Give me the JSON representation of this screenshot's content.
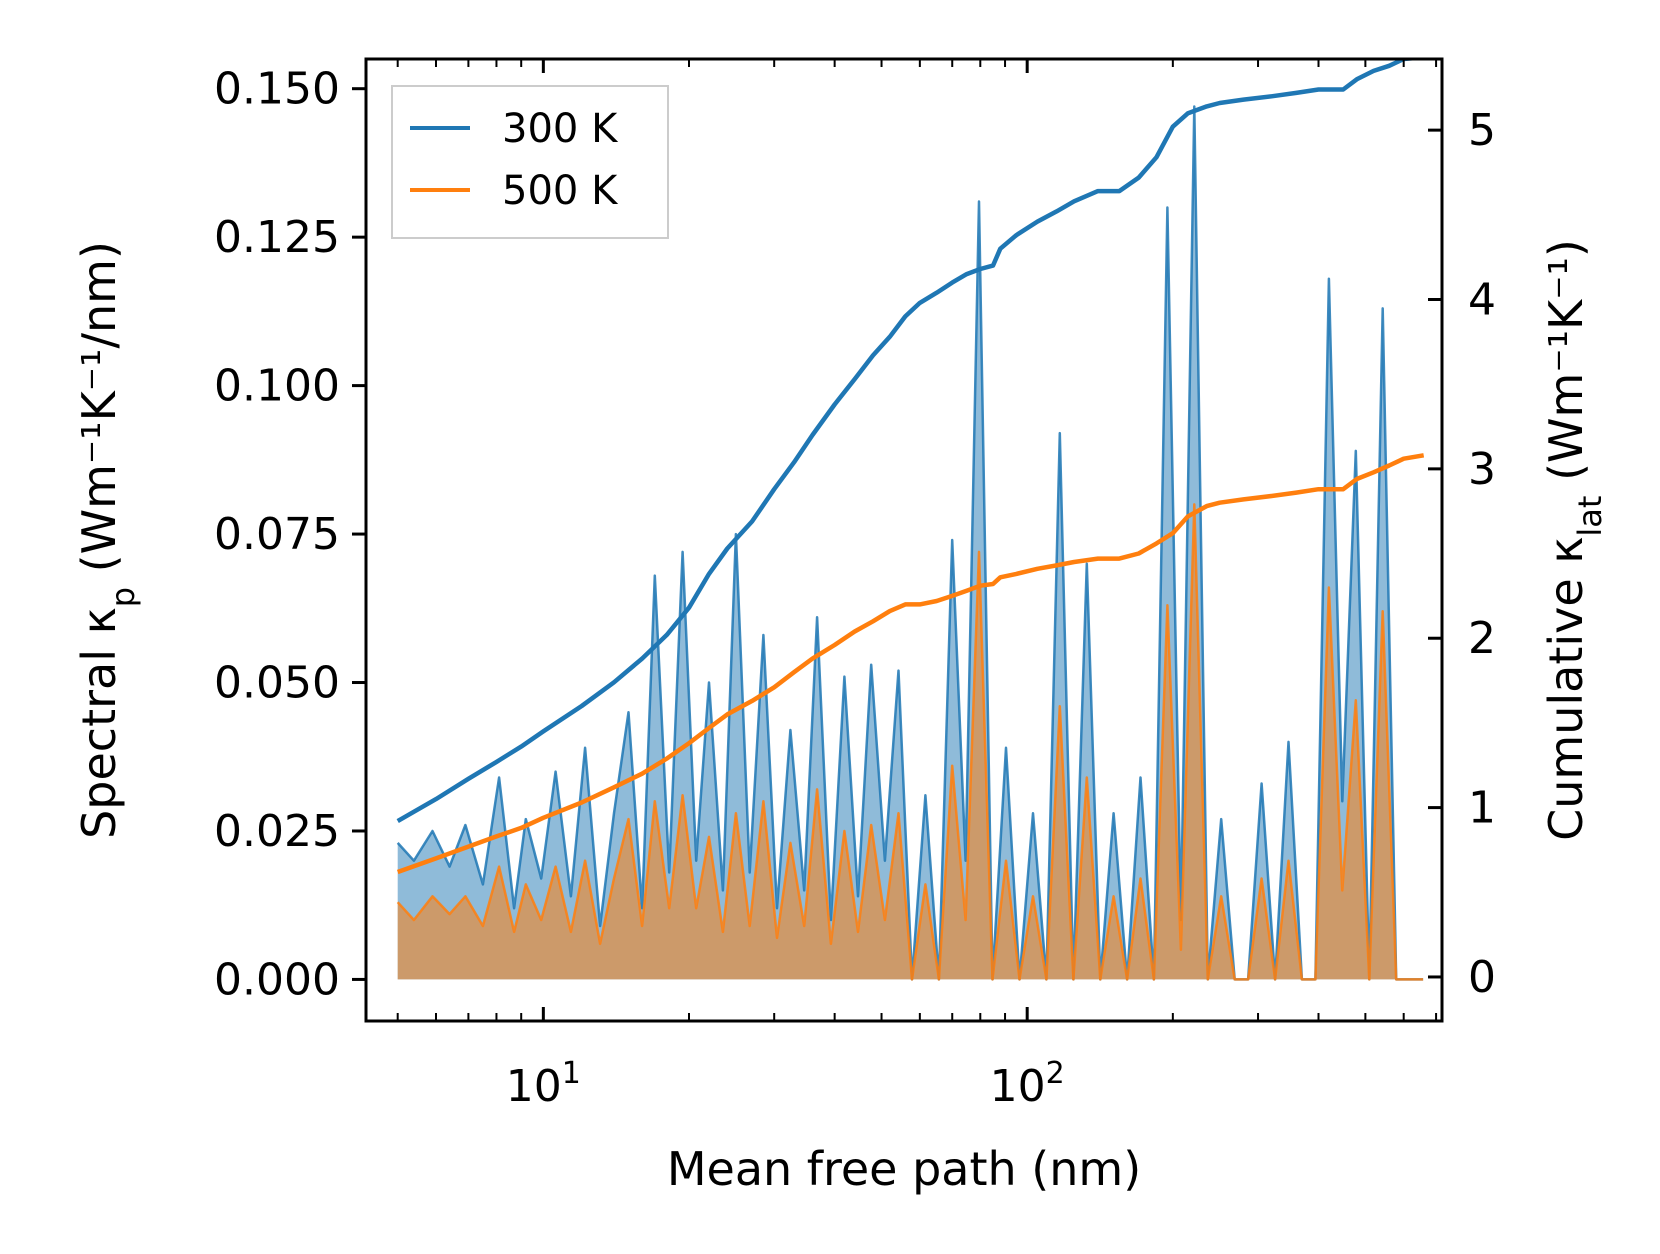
{
  "chart_data": {
    "type": "line",
    "x_scale": "log",
    "xlabel": "Mean free path (nm)",
    "ylabel_left": {
      "prefix": "Spectral κ",
      "sub": "p",
      "units": " (Wm⁻¹K⁻¹/nm)"
    },
    "ylabel_right": {
      "prefix": "Cumulative κ",
      "sub": "lat",
      "units": " (Wm⁻¹K⁻¹)"
    },
    "xlim": [
      4.3,
      720
    ],
    "ylim_left": [
      -0.007,
      0.155
    ],
    "ylim_right": [
      -0.26,
      5.42
    ],
    "x_ticks": [
      {
        "value": 10,
        "base": "10",
        "exp": "1"
      },
      {
        "value": 100,
        "base": "10",
        "exp": "2"
      }
    ],
    "y_ticks_left": [
      {
        "value": 0.0,
        "label": "0.000"
      },
      {
        "value": 0.025,
        "label": "0.025"
      },
      {
        "value": 0.05,
        "label": "0.050"
      },
      {
        "value": 0.075,
        "label": "0.075"
      },
      {
        "value": 0.1,
        "label": "0.100"
      },
      {
        "value": 0.125,
        "label": "0.125"
      },
      {
        "value": 0.15,
        "label": "0.150"
      }
    ],
    "y_ticks_right": [
      {
        "value": 0,
        "label": "0"
      },
      {
        "value": 1,
        "label": "1"
      },
      {
        "value": 2,
        "label": "2"
      },
      {
        "value": 3,
        "label": "3"
      },
      {
        "value": 4,
        "label": "4"
      },
      {
        "value": 5,
        "label": "5"
      }
    ],
    "legend": {
      "position": "upper-left",
      "entries": [
        "300 K",
        "500 K"
      ]
    },
    "series": [
      {
        "name": "300 K",
        "color": "#1f77b4",
        "fill_color": "#1f77b4",
        "spectral": {
          "x": [
            5,
            5.4,
            5.9,
            6.4,
            6.9,
            7.5,
            8.1,
            8.7,
            9.2,
            9.9,
            10.6,
            11.4,
            12.2,
            13.1,
            14,
            15,
            16,
            17,
            18.2,
            19.4,
            20.7,
            22,
            23.5,
            25,
            26.7,
            28.5,
            30.4,
            32.4,
            34.6,
            36.8,
            39.3,
            41.9,
            44.7,
            47.6,
            50.8,
            54.2,
            57.8,
            61.6,
            65.7,
            70,
            74.6,
            79.5,
            84.8,
            90.4,
            96.4,
            102.8,
            109.6,
            116.8,
            124.6,
            132.8,
            141.6,
            150.9,
            160.9,
            171.5,
            182.8,
            194.9,
            207.8,
            221.5,
            236.2,
            251.8,
            268.5,
            286.2,
            305.1,
            325.3,
            346.8,
            369.7,
            394.2,
            420.3,
            448.1,
            477.7,
            509.3,
            543,
            578.9,
            617.2,
            658
          ],
          "y": [
            0.023,
            0.02,
            0.025,
            0.019,
            0.026,
            0.016,
            0.034,
            0.012,
            0.027,
            0.017,
            0.035,
            0.014,
            0.039,
            0.009,
            0.028,
            0.045,
            0.012,
            0.068,
            0.018,
            0.072,
            0.02,
            0.05,
            0.015,
            0.075,
            0.018,
            0.058,
            0.012,
            0.042,
            0.015,
            0.061,
            0.01,
            0.051,
            0.014,
            0.053,
            0.02,
            0.052,
            0.0,
            0.031,
            0.0,
            0.074,
            0.02,
            0.131,
            0.0,
            0.039,
            0.0,
            0.028,
            0.0,
            0.092,
            0.0,
            0.07,
            0.0,
            0.028,
            0.0,
            0.034,
            0.0,
            0.13,
            0.01,
            0.147,
            0.0,
            0.027,
            0.0,
            0.0,
            0.033,
            0.0,
            0.04,
            0.0,
            0.0,
            0.118,
            0.03,
            0.089,
            0.0,
            0.113,
            0.0,
            0.0,
            0.0
          ]
        },
        "cumulative": {
          "x": [
            5,
            6,
            7,
            8,
            9,
            10,
            12,
            14,
            16,
            18,
            20,
            22,
            24,
            27,
            30,
            33,
            36,
            40,
            44,
            48,
            52,
            56,
            60,
            65,
            70,
            75,
            80,
            85,
            88,
            95,
            105,
            115,
            125,
            140,
            155,
            170,
            185,
            200,
            215,
            235,
            250,
            280,
            320,
            360,
            400,
            450,
            480,
            520,
            560,
            600,
            660
          ],
          "y": [
            0.92,
            1.05,
            1.17,
            1.27,
            1.36,
            1.45,
            1.6,
            1.74,
            1.88,
            2.02,
            2.18,
            2.38,
            2.53,
            2.69,
            2.88,
            3.04,
            3.2,
            3.38,
            3.53,
            3.67,
            3.78,
            3.9,
            3.98,
            4.04,
            4.1,
            4.15,
            4.18,
            4.2,
            4.3,
            4.38,
            4.46,
            4.52,
            4.58,
            4.64,
            4.64,
            4.72,
            4.84,
            5.02,
            5.1,
            5.14,
            5.16,
            5.18,
            5.2,
            5.22,
            5.24,
            5.24,
            5.3,
            5.35,
            5.38,
            5.42,
            5.43
          ]
        }
      },
      {
        "name": "500 K",
        "color": "#ff7f0e",
        "fill_color": "#ff7f0e",
        "spectral": {
          "x": [
            5,
            5.4,
            5.9,
            6.4,
            6.9,
            7.5,
            8.1,
            8.7,
            9.2,
            9.9,
            10.6,
            11.4,
            12.2,
            13.1,
            14,
            15,
            16,
            17,
            18.2,
            19.4,
            20.7,
            22,
            23.5,
            25,
            26.7,
            28.5,
            30.4,
            32.4,
            34.6,
            36.8,
            39.3,
            41.9,
            44.7,
            47.6,
            50.8,
            54.2,
            57.8,
            61.6,
            65.7,
            70,
            74.6,
            79.5,
            84.8,
            90.4,
            96.4,
            102.8,
            109.6,
            116.8,
            124.6,
            132.8,
            141.6,
            150.9,
            160.9,
            171.5,
            182.8,
            194.9,
            207.8,
            221.5,
            236.2,
            251.8,
            268.5,
            286.2,
            305.1,
            325.3,
            346.8,
            369.7,
            394.2,
            420.3,
            448.1,
            477.7,
            509.3,
            543,
            578.9,
            617.2,
            658
          ],
          "y": [
            0.013,
            0.01,
            0.014,
            0.011,
            0.014,
            0.009,
            0.019,
            0.008,
            0.016,
            0.01,
            0.019,
            0.008,
            0.02,
            0.006,
            0.017,
            0.027,
            0.009,
            0.03,
            0.012,
            0.031,
            0.012,
            0.024,
            0.008,
            0.028,
            0.009,
            0.03,
            0.007,
            0.023,
            0.009,
            0.032,
            0.006,
            0.025,
            0.008,
            0.026,
            0.01,
            0.028,
            0.0,
            0.016,
            0.0,
            0.036,
            0.01,
            0.072,
            0.0,
            0.02,
            0.0,
            0.014,
            0.0,
            0.046,
            0.0,
            0.034,
            0.0,
            0.014,
            0.0,
            0.017,
            0.0,
            0.063,
            0.005,
            0.08,
            0.0,
            0.014,
            0.0,
            0.0,
            0.017,
            0.0,
            0.02,
            0.0,
            0.0,
            0.066,
            0.015,
            0.047,
            0.0,
            0.062,
            0.0,
            0.0,
            0.0
          ]
        },
        "cumulative": {
          "x": [
            5,
            6,
            7,
            8,
            9,
            10,
            12,
            14,
            16,
            18,
            20,
            22,
            24,
            27,
            30,
            33,
            36,
            40,
            44,
            48,
            52,
            56,
            60,
            65,
            70,
            75,
            80,
            85,
            88,
            95,
            105,
            115,
            125,
            140,
            155,
            170,
            185,
            200,
            215,
            235,
            250,
            280,
            320,
            360,
            400,
            450,
            480,
            520,
            560,
            600,
            660
          ],
          "y": [
            0.62,
            0.7,
            0.77,
            0.83,
            0.88,
            0.94,
            1.03,
            1.12,
            1.2,
            1.29,
            1.38,
            1.47,
            1.55,
            1.63,
            1.71,
            1.8,
            1.88,
            1.96,
            2.04,
            2.1,
            2.16,
            2.2,
            2.2,
            2.22,
            2.25,
            2.28,
            2.31,
            2.32,
            2.36,
            2.38,
            2.41,
            2.43,
            2.45,
            2.47,
            2.47,
            2.5,
            2.56,
            2.62,
            2.72,
            2.78,
            2.8,
            2.82,
            2.84,
            2.86,
            2.88,
            2.88,
            2.94,
            2.98,
            3.02,
            3.06,
            3.08
          ]
        }
      }
    ]
  }
}
